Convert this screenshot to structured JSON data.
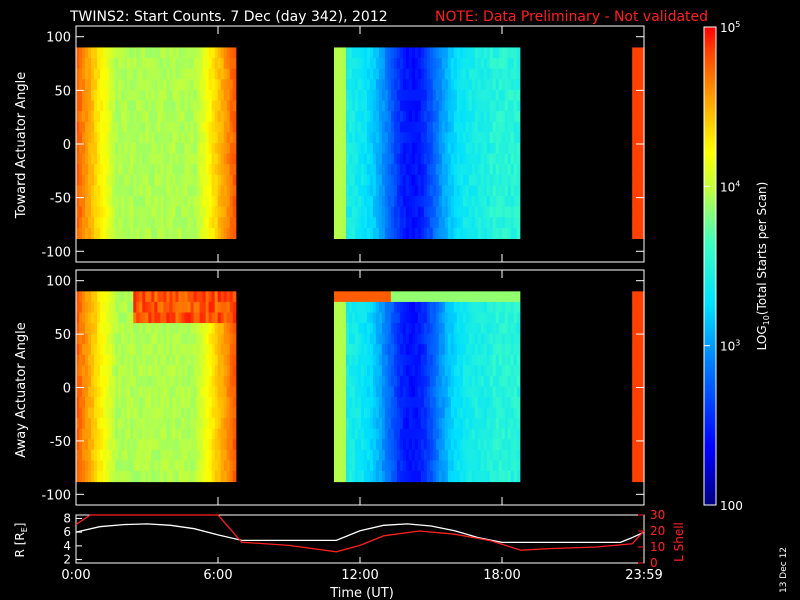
{
  "header": {
    "title": "TWINS2: Start Counts.  7 Dec (day 342), 2012",
    "note": "NOTE: Data Preliminary - Not validated",
    "note_color": "#ff2020"
  },
  "side_stamp": "13 Dec 12",
  "chart_data": [
    {
      "type": "heatmap",
      "name": "toward",
      "ylabel": "Toward Actuator Angle",
      "ylim": [
        -110,
        110
      ],
      "yticks": [
        "100",
        "50",
        "0",
        "-50",
        "-100"
      ],
      "xlim": [
        0,
        24
      ],
      "data_blocks_hours": [
        [
          0.0,
          6.75
        ],
        [
          10.9,
          18.75
        ],
        [
          23.5,
          24.0
        ]
      ],
      "angle_range": [
        -88,
        90
      ]
    },
    {
      "type": "heatmap",
      "name": "away",
      "ylabel": "Away Actuator Angle",
      "ylim": [
        -110,
        110
      ],
      "yticks": [
        "100",
        "50",
        "0",
        "-50",
        "-100"
      ],
      "xlim": [
        0,
        24
      ],
      "data_blocks_hours": [
        [
          0.0,
          6.75
        ],
        [
          10.9,
          18.75
        ],
        [
          23.5,
          24.0
        ]
      ],
      "angle_range": [
        -88,
        90
      ]
    },
    {
      "type": "line",
      "name": "orbit",
      "ylabel_left": "R [R",
      "ylabel_left_sub": "E",
      "ylabel_left_end": "]",
      "ylabel_right": "L Shell",
      "yticks_left": [
        "8",
        "6",
        "4",
        "2"
      ],
      "yticks_right": [
        "30",
        "20",
        "10",
        "0"
      ],
      "ylim_left": [
        1.5,
        8.5
      ],
      "ylim_right": [
        0,
        30
      ],
      "xlabel": "Time (UT)",
      "xticks": [
        {
          "label": "0:00",
          "x": 0
        },
        {
          "label": "6:00",
          "x": 6
        },
        {
          "label": "12:00",
          "x": 12
        },
        {
          "label": "18:00",
          "x": 18
        },
        {
          "label": "23:59",
          "x": 24
        }
      ],
      "series": [
        {
          "color": "#ffffff",
          "x": [
            0,
            1,
            2,
            3,
            4,
            5,
            6,
            7,
            8,
            9,
            10,
            11,
            12,
            13,
            14,
            15,
            16,
            17,
            18,
            19,
            20,
            21,
            22,
            23,
            23.5,
            24
          ],
          "y": [
            6.0,
            6.8,
            7.1,
            7.2,
            7.0,
            6.5,
            5.6,
            4.8,
            4.8,
            4.8,
            4.8,
            4.8,
            6.2,
            7.0,
            7.2,
            6.9,
            6.2,
            5.2,
            4.5,
            4.5,
            4.5,
            4.5,
            4.5,
            4.5,
            5.2,
            6.0
          ]
        },
        {
          "color": "#ff2020",
          "x": [
            0,
            0.6,
            6.0,
            7.0,
            9.0,
            11.0,
            12.0,
            13.0,
            14.5,
            16.0,
            17.5,
            18.8,
            20.0,
            22.0,
            23.5,
            24.0
          ],
          "y": [
            24,
            30,
            30,
            13,
            11,
            7,
            11,
            17,
            20,
            18,
            14,
            8,
            9,
            10,
            12,
            20
          ]
        }
      ]
    }
  ],
  "colorbar": {
    "label": "LOG10(Total Starts per Scan)",
    "label_main": "LOG",
    "label_sub": "10",
    "label_rest": "(Total Starts per Scan)",
    "ticks": [
      {
        "base": "10",
        "exp": "5",
        "value": 100000
      },
      {
        "base": "10",
        "exp": "4",
        "value": 10000
      },
      {
        "base": "10",
        "exp": "3",
        "value": 1000
      },
      {
        "base": "100",
        "exp": "",
        "value": 100
      }
    ],
    "range": [
      100,
      100000
    ]
  }
}
